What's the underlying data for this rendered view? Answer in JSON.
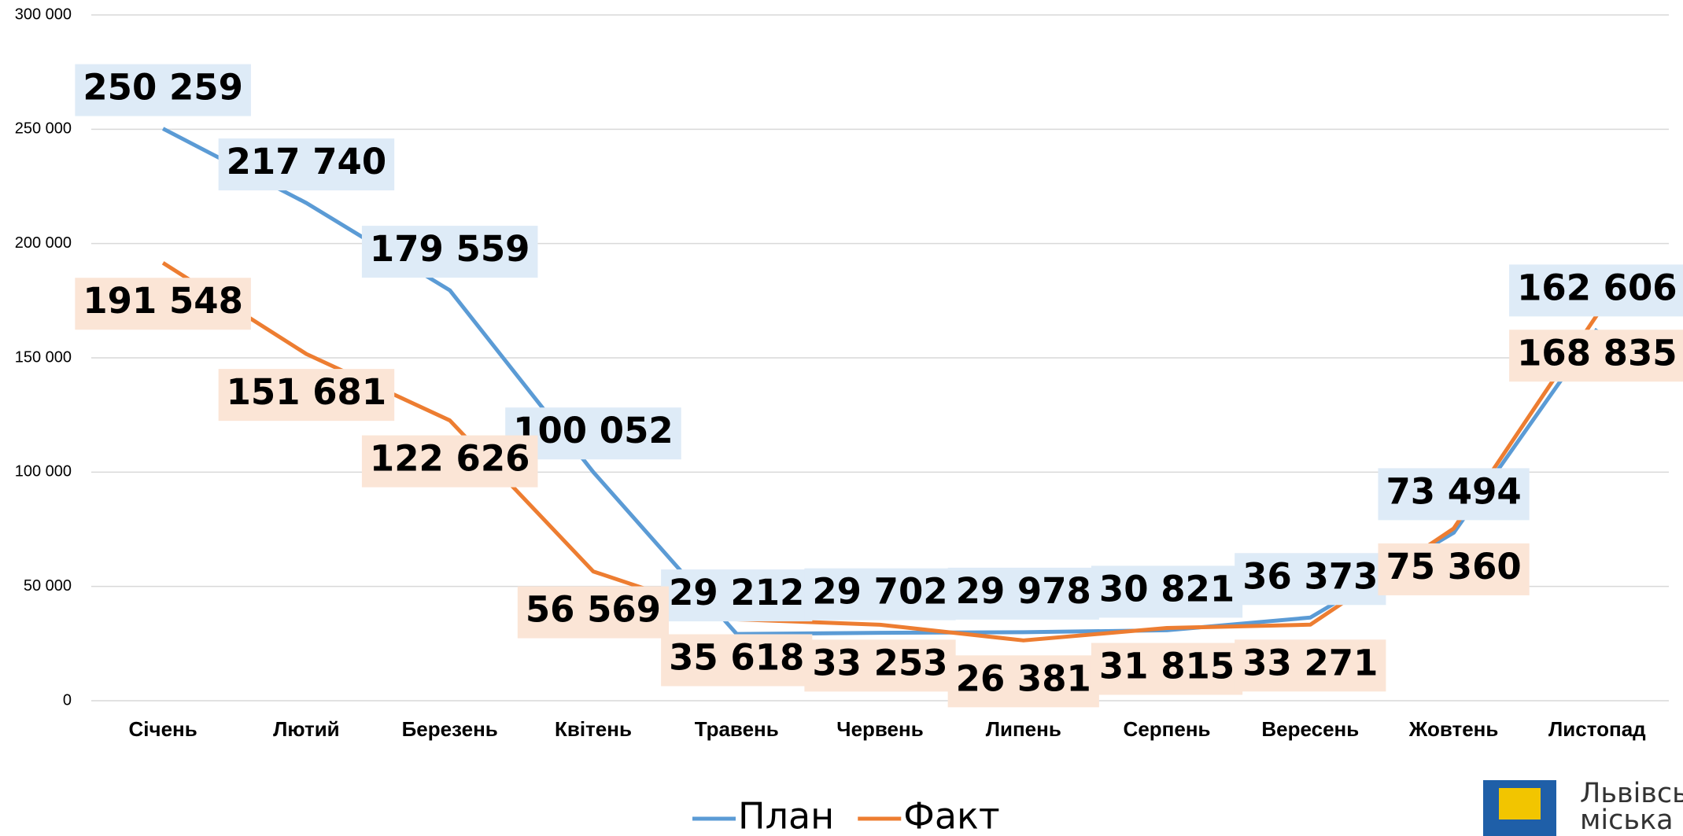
{
  "chart_data": {
    "type": "line",
    "categories": [
      "Січень",
      "Лютий",
      "Березень",
      "Квітень",
      "Травень",
      "Червень",
      "Липень",
      "Серпень",
      "Вересень",
      "Жовтень",
      "Листопад"
    ],
    "series": [
      {
        "name": "План",
        "color": "#5b9bd5",
        "label_color": "#deebf7",
        "values": [
          250259,
          217740,
          179559,
          100052,
          29212,
          29702,
          29978,
          30821,
          36373,
          73494,
          162606
        ],
        "value_labels": [
          "250 259",
          "217 740",
          "179 559",
          "100 052",
          "29 212",
          "29 702",
          "29 978",
          "30 821",
          "36 373",
          "73 494",
          "162 606"
        ]
      },
      {
        "name": "Факт",
        "color": "#ed7d31",
        "label_color": "#fbe5d6",
        "values": [
          191548,
          151681,
          122626,
          56569,
          35618,
          33253,
          26381,
          31815,
          33271,
          75360,
          168835
        ],
        "value_labels": [
          "191 548",
          "151 681",
          "122 626",
          "56 569",
          "35 618",
          "33 253",
          "26 381",
          "31 815",
          "33 271",
          "75 360",
          "168 835"
        ]
      }
    ],
    "ylim": [
      0,
      300000
    ],
    "yticks": [
      0,
      {
        "value": 50000,
        "label": "50 000"
      },
      {
        "value": 100000,
        "label": "100 000"
      },
      {
        "value": 150000,
        "label": "150 000"
      },
      {
        "value": 200000,
        "label": "200 000"
      },
      {
        "value": 250000,
        "label": "250 000"
      },
      {
        "value": 300000,
        "label": "300 000"
      }
    ],
    "grid": true,
    "legend": "bottom"
  },
  "logo_text": [
    "Львівська",
    "міська"
  ]
}
